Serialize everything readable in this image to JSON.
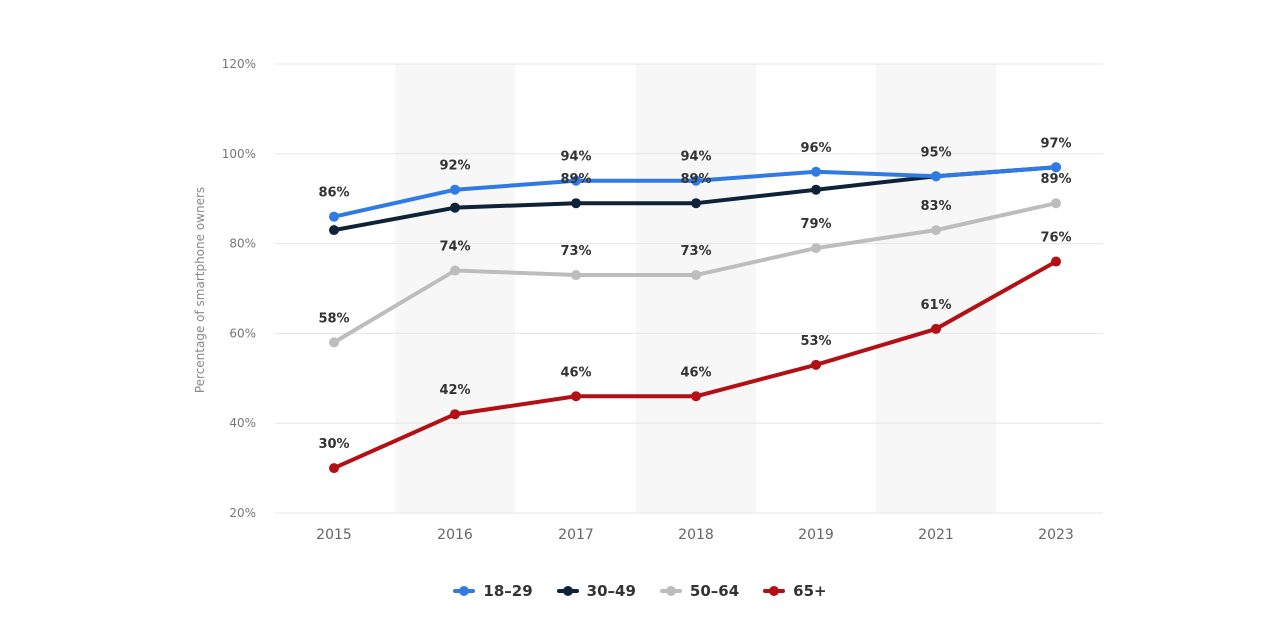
{
  "chart_data": {
    "type": "line",
    "ylabel": "Percentage of smartphone owners",
    "xlabel": "",
    "ylim": [
      20,
      120
    ],
    "yticks": [
      20,
      40,
      60,
      80,
      100,
      120
    ],
    "ytick_labels": [
      "20%",
      "40%",
      "60%",
      "80%",
      "100%",
      "120%"
    ],
    "categories": [
      "2015",
      "2016",
      "2017",
      "2018",
      "2019",
      "2021",
      "2023"
    ],
    "grid": true,
    "legend_position": "bottom",
    "series": [
      {
        "name": "18–29",
        "color": "#2f7ae5",
        "values": [
          86,
          92,
          94,
          94,
          96,
          95,
          97
        ],
        "labels": [
          "86%",
          "92%",
          "94%",
          "94%",
          "96%",
          "95%",
          ""
        ]
      },
      {
        "name": "30–49",
        "color": "#0f2338",
        "values": [
          83,
          88,
          89,
          89,
          92,
          95,
          97
        ],
        "labels": [
          "",
          "",
          "89%",
          "89%",
          "",
          "",
          "97%"
        ]
      },
      {
        "name": "50–64",
        "color": "#bdbdbd",
        "values": [
          58,
          74,
          73,
          73,
          79,
          83,
          89
        ],
        "labels": [
          "58%",
          "74%",
          "73%",
          "73%",
          "79%",
          "83%",
          "89%"
        ]
      },
      {
        "name": "65+",
        "color": "#b30f14",
        "values": [
          30,
          42,
          46,
          46,
          53,
          61,
          76
        ],
        "labels": [
          "30%",
          "42%",
          "46%",
          "46%",
          "53%",
          "61%",
          "76%"
        ]
      }
    ]
  }
}
